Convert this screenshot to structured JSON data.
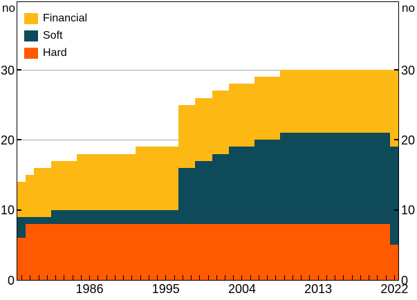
{
  "chart_data": {
    "type": "bar",
    "stacked": true,
    "orientation": "vertical",
    "unit_label_left": "no",
    "unit_label_right": "no",
    "years_start": 1978,
    "years_end": 2022,
    "x_tick_labels": [
      "1986",
      "1995",
      "2004",
      "2013",
      "2022"
    ],
    "y_ticks": [
      0,
      10,
      20,
      30
    ],
    "ylim": [
      0,
      40
    ],
    "grid_values": [
      10,
      20,
      30
    ],
    "grid_color": "#ABABAB",
    "legend_position": "top-left-inside",
    "legend": [
      {
        "label": "Financial",
        "color": "#FDB813"
      },
      {
        "label": "Soft",
        "color": "#0E4A59"
      },
      {
        "label": "Hard",
        "color": "#FF5A00"
      }
    ],
    "series": [
      {
        "name": "Hard",
        "color": "#FF5A00",
        "values": [
          6,
          8,
          8,
          8,
          8,
          8,
          8,
          8,
          8,
          8,
          8,
          8,
          8,
          8,
          8,
          8,
          8,
          8,
          8,
          8,
          8,
          8,
          8,
          8,
          8,
          8,
          8,
          8,
          8,
          8,
          8,
          8,
          8,
          8,
          8,
          8,
          8,
          8,
          8,
          8,
          8,
          8,
          8,
          8,
          5
        ]
      },
      {
        "name": "Soft",
        "color": "#0E4A59",
        "values": [
          3,
          1,
          1,
          1,
          2,
          2,
          2,
          2,
          2,
          2,
          2,
          2,
          2,
          2,
          2,
          2,
          2,
          2,
          2,
          8,
          8,
          9,
          9,
          10,
          10,
          11,
          11,
          11,
          12,
          12,
          12,
          13,
          13,
          13,
          13,
          13,
          13,
          13,
          13,
          13,
          13,
          13,
          13,
          13,
          14
        ]
      },
      {
        "name": "Financial",
        "color": "#FDB813",
        "values": [
          5,
          6,
          7,
          7,
          7,
          7,
          7,
          8,
          8,
          8,
          8,
          8,
          8,
          8,
          9,
          9,
          9,
          9,
          9,
          9,
          9,
          9,
          9,
          9,
          9,
          9,
          9,
          9,
          9,
          9,
          9,
          9,
          9,
          9,
          9,
          9,
          9,
          9,
          9,
          9,
          9,
          9,
          9,
          9,
          11
        ]
      }
    ]
  }
}
